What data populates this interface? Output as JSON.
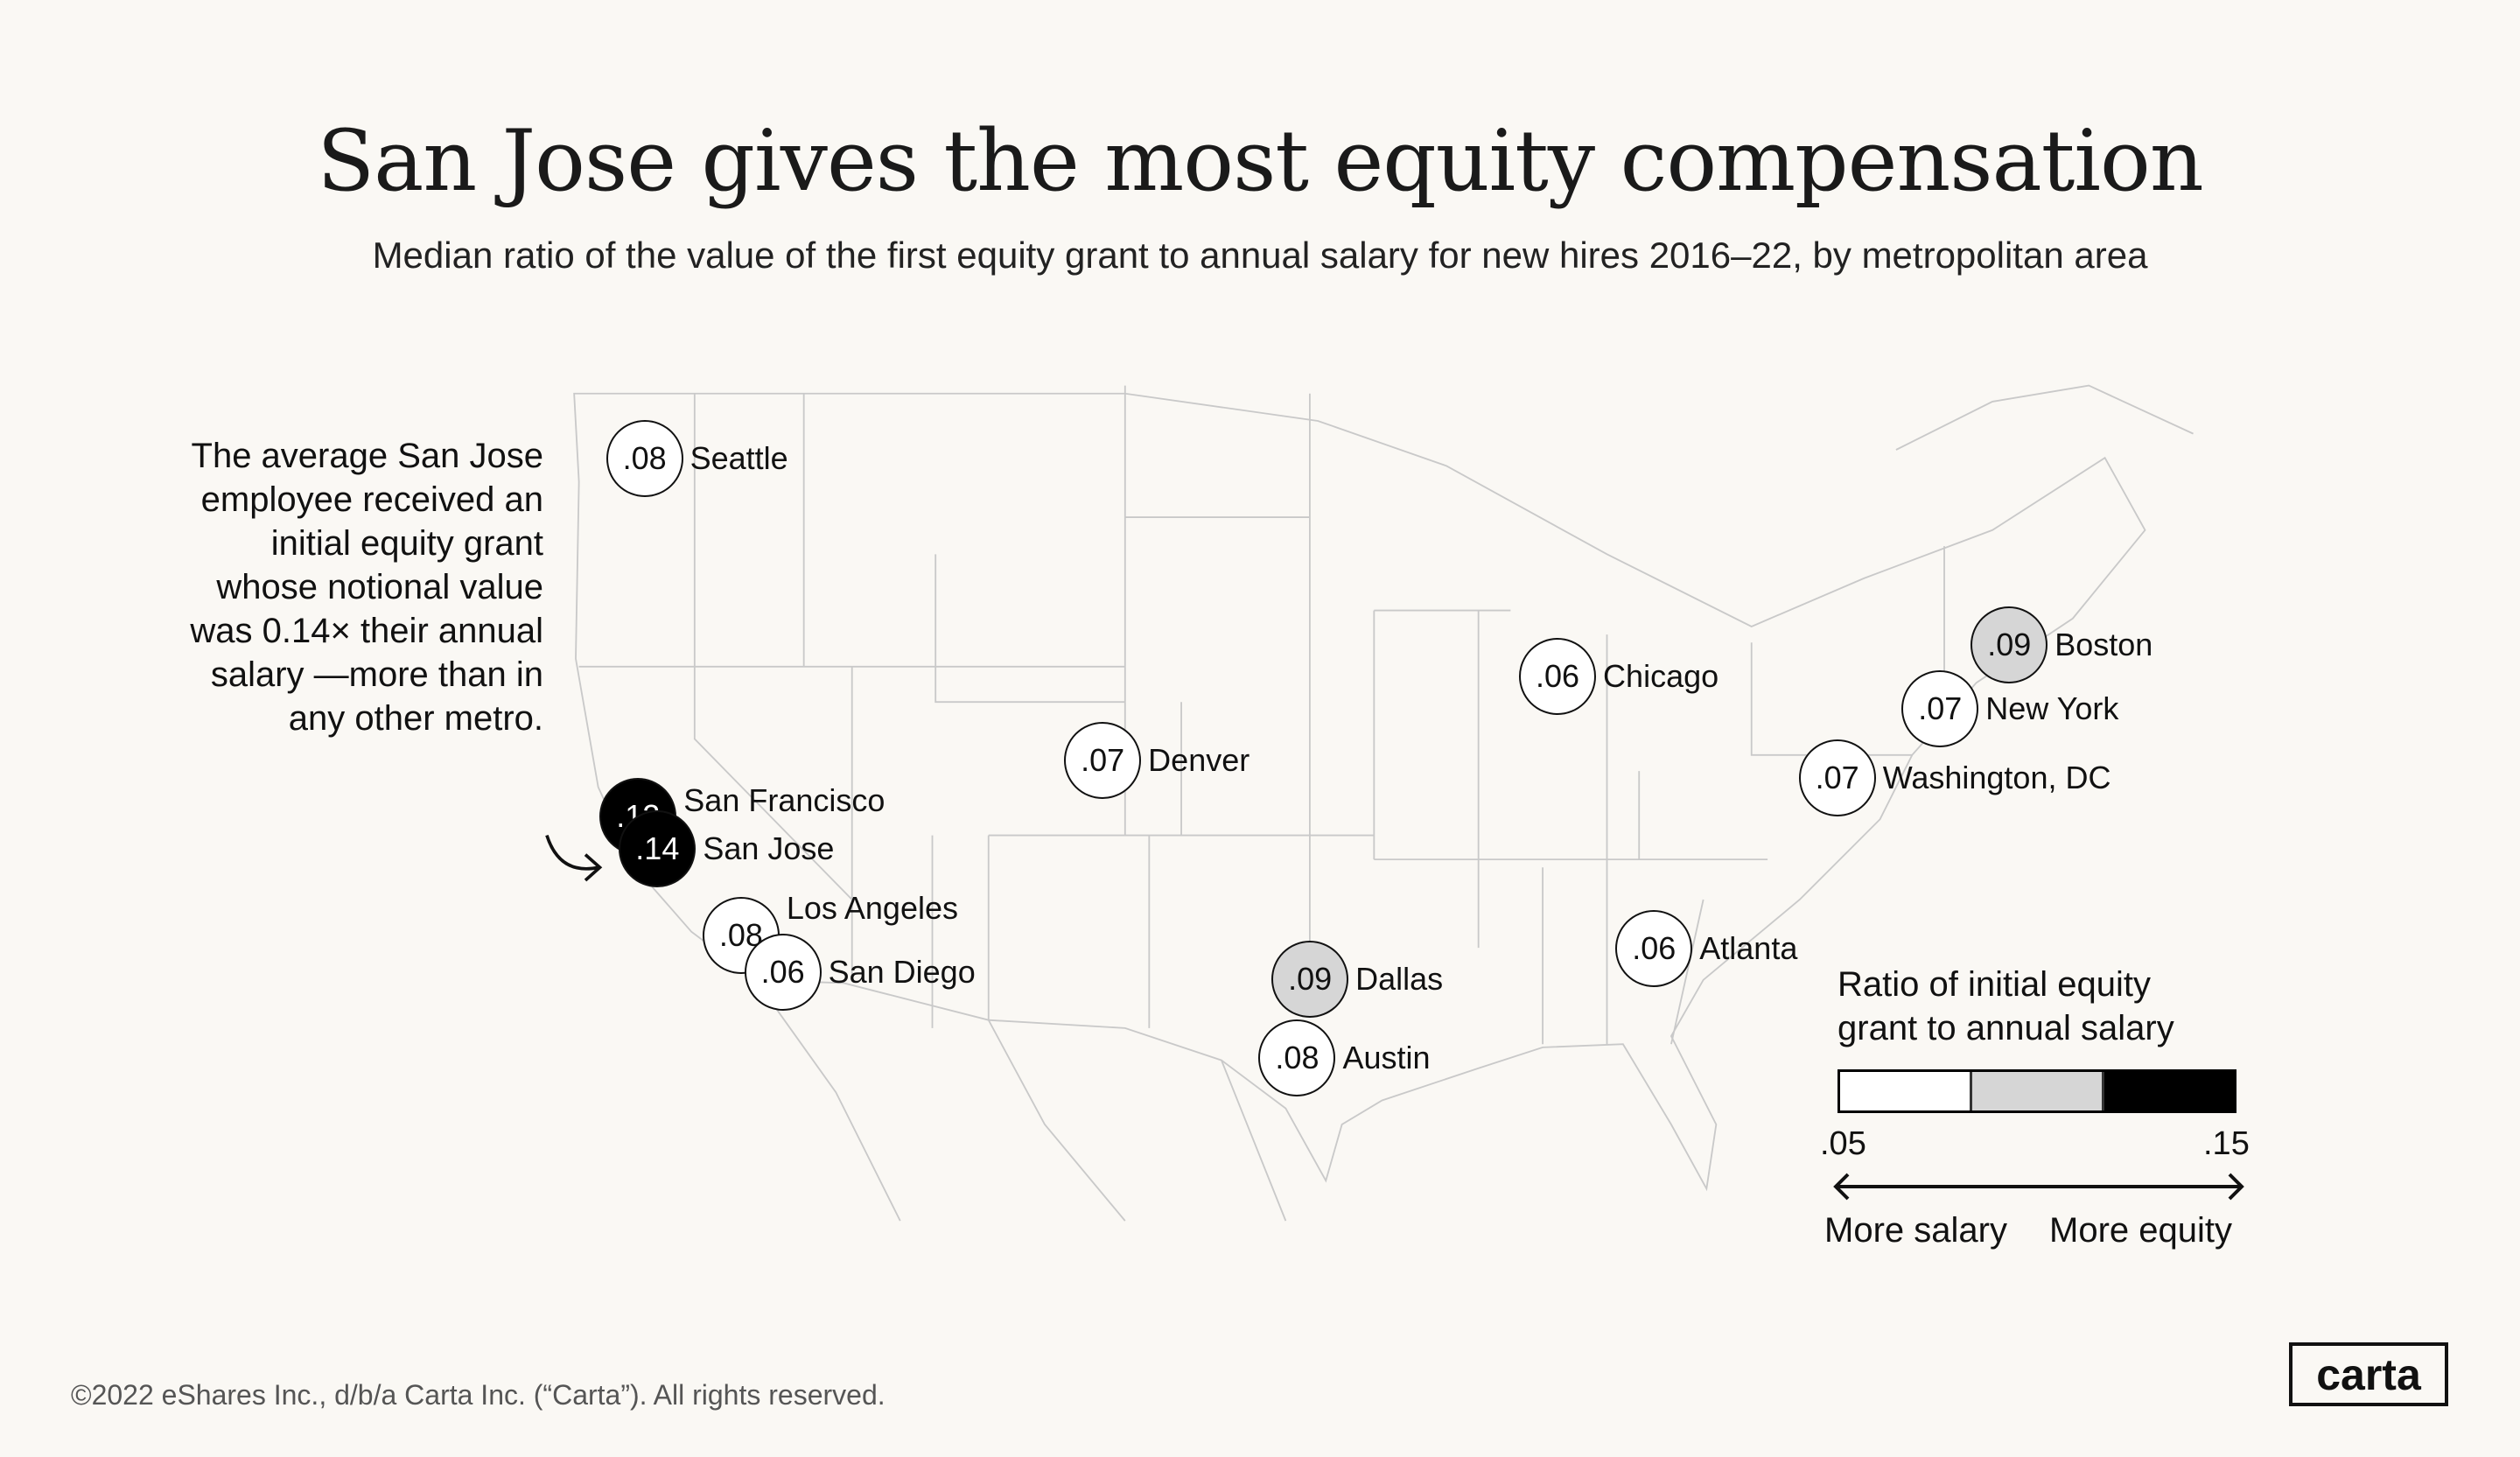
{
  "header": {
    "title": "San Jose gives the most equity compensation",
    "subtitle": "Median ratio of the value of the first equity grant to annual salary for new hires 2016–22, by metropolitan area"
  },
  "annotation": "The average San Jose employee received an initial equity grant whose notional value was 0.14× their annual salary —more than in any other metro.",
  "cities": [
    {
      "name": "Seattle",
      "value": 0.08,
      "label": ".08"
    },
    {
      "name": "San Francisco",
      "value": 0.12,
      "label": ".12"
    },
    {
      "name": "San Jose",
      "value": 0.14,
      "label": ".14"
    },
    {
      "name": "Los Angeles",
      "value": 0.08,
      "label": ".08"
    },
    {
      "name": "San Diego",
      "value": 0.06,
      "label": ".06"
    },
    {
      "name": "Denver",
      "value": 0.07,
      "label": ".07"
    },
    {
      "name": "Dallas",
      "value": 0.09,
      "label": ".09"
    },
    {
      "name": "Austin",
      "value": 0.08,
      "label": ".08"
    },
    {
      "name": "Chicago",
      "value": 0.06,
      "label": ".06"
    },
    {
      "name": "Atlanta",
      "value": 0.06,
      "label": ".06"
    },
    {
      "name": "Boston",
      "value": 0.09,
      "label": ".09"
    },
    {
      "name": "New York",
      "value": 0.07,
      "label": ".07"
    },
    {
      "name": "Washington, DC",
      "value": 0.07,
      "label": ".07"
    }
  ],
  "legend": {
    "title": "Ratio of initial equity grant to annual salary",
    "min_label": ".05",
    "max_label": ".15",
    "range": [
      0.05,
      0.15
    ],
    "bins": [
      "#ffffff",
      "#d6d6d6",
      "#000000"
    ],
    "left_label": "More salary",
    "right_label": "More equity"
  },
  "logo": "carta",
  "footer": "©2022 eShares Inc., d/b/a Carta Inc. (“Carta”). All rights reserved."
}
